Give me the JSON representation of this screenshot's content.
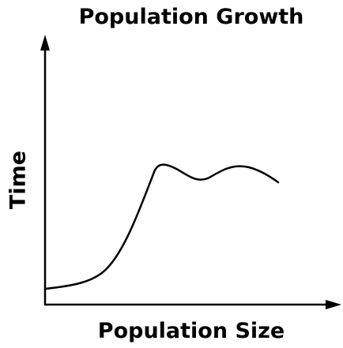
{
  "title": "Population Growth",
  "x_axis_label": "Population Size",
  "y_axis_label": "Time"
}
